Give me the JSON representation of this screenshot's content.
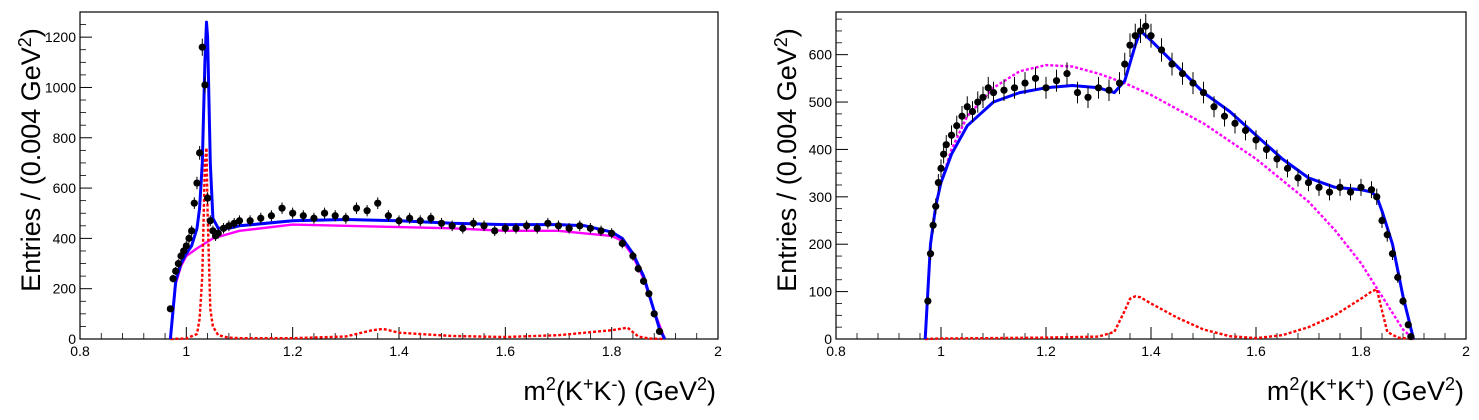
{
  "colors": {
    "data": "#000000",
    "fit_total": "#0000ff",
    "component_red": "#ff0000",
    "component_magenta": "#ff00ff",
    "frame": "#000000"
  },
  "chart_data": [
    {
      "type": "line",
      "panel": "left",
      "xlabel": {
        "base": "m",
        "sup1": "2",
        "mid": "(K",
        "sup2": "+",
        "mid2": "K",
        "sup3": "-",
        "end": ") (GeV",
        "sup4": "2",
        "close": ")"
      },
      "ylabel": {
        "base": "Entries / (0.004 GeV",
        "sup": "2",
        "close": ")"
      },
      "xlim": [
        0.8,
        2.0
      ],
      "ylim": [
        0,
        1300
      ],
      "xticks": [
        0.8,
        1.0,
        1.2,
        1.4,
        1.6,
        1.8,
        2.0
      ],
      "xtick_labels": [
        "0.8",
        "1",
        "1.2",
        "1.4",
        "1.6",
        "1.8",
        "2"
      ],
      "yticks": [
        0,
        200,
        400,
        600,
        800,
        1000,
        1200
      ],
      "ytick_labels": [
        "0",
        "200",
        "400",
        "600",
        "800",
        "1000",
        "1200"
      ],
      "series": [
        {
          "name": "data",
          "style": "points",
          "x": [
            0.97,
            0.975,
            0.98,
            0.985,
            0.99,
            0.995,
            1.0,
            1.005,
            1.01,
            1.015,
            1.02,
            1.025,
            1.03,
            1.035,
            1.04,
            1.045,
            1.05,
            1.055,
            1.06,
            1.07,
            1.08,
            1.09,
            1.1,
            1.12,
            1.14,
            1.16,
            1.18,
            1.2,
            1.22,
            1.24,
            1.26,
            1.28,
            1.3,
            1.32,
            1.34,
            1.36,
            1.38,
            1.4,
            1.42,
            1.44,
            1.46,
            1.48,
            1.5,
            1.52,
            1.54,
            1.56,
            1.58,
            1.6,
            1.62,
            1.64,
            1.66,
            1.68,
            1.7,
            1.72,
            1.74,
            1.76,
            1.78,
            1.8,
            1.82,
            1.84,
            1.85,
            1.86,
            1.87,
            1.88,
            1.89
          ],
          "y": [
            120,
            240,
            270,
            300,
            330,
            350,
            370,
            400,
            430,
            540,
            620,
            740,
            1160,
            1010,
            560,
            470,
            430,
            410,
            420,
            440,
            450,
            460,
            470,
            470,
            480,
            490,
            520,
            500,
            490,
            480,
            500,
            490,
            480,
            520,
            510,
            540,
            490,
            470,
            480,
            470,
            480,
            460,
            450,
            440,
            460,
            450,
            430,
            440,
            440,
            450,
            440,
            460,
            450,
            440,
            450,
            440,
            430,
            420,
            380,
            330,
            280,
            230,
            180,
            100,
            30
          ]
        },
        {
          "name": "total fit",
          "style": "line",
          "x": [
            0.97,
            0.98,
            0.99,
            1.0,
            1.01,
            1.02,
            1.025,
            1.03,
            1.035,
            1.038,
            1.04,
            1.045,
            1.05,
            1.06,
            1.08,
            1.1,
            1.2,
            1.3,
            1.4,
            1.5,
            1.6,
            1.7,
            1.75,
            1.8,
            1.82,
            1.84,
            1.86,
            1.88,
            1.89,
            1.9
          ],
          "y": [
            0,
            230,
            300,
            340,
            370,
            440,
            520,
            700,
            1100,
            1260,
            1200,
            700,
            480,
            440,
            440,
            450,
            470,
            475,
            470,
            460,
            455,
            455,
            450,
            425,
            400,
            340,
            250,
            110,
            40,
            0
          ]
        },
        {
          "name": "red component",
          "style": "dashed",
          "x": [
            0.97,
            1.0,
            1.02,
            1.025,
            1.03,
            1.035,
            1.038,
            1.04,
            1.045,
            1.05,
            1.06,
            1.08,
            1.1,
            1.2,
            1.3,
            1.35,
            1.37,
            1.4,
            1.5,
            1.6,
            1.7,
            1.8,
            1.83,
            1.85,
            1.87,
            1.9
          ],
          "y": [
            0,
            2,
            20,
            80,
            250,
            700,
            760,
            500,
            120,
            50,
            15,
            5,
            3,
            3,
            10,
            35,
            40,
            25,
            12,
            8,
            15,
            35,
            45,
            10,
            2,
            0
          ]
        },
        {
          "name": "magenta component",
          "style": "line",
          "x": [
            0.97,
            0.98,
            0.99,
            1.0,
            1.02,
            1.05,
            1.1,
            1.2,
            1.3,
            1.4,
            1.5,
            1.6,
            1.7,
            1.75,
            1.8,
            1.82,
            1.84,
            1.86,
            1.88,
            1.9
          ],
          "y": [
            0,
            220,
            290,
            330,
            360,
            400,
            430,
            455,
            450,
            445,
            440,
            430,
            430,
            420,
            410,
            390,
            330,
            240,
            110,
            0
          ]
        }
      ]
    },
    {
      "type": "line",
      "panel": "right",
      "xlabel": {
        "base": "m",
        "sup1": "2",
        "mid": "(K",
        "sup2": "+",
        "mid2": "K",
        "sup3": "+",
        "end": ") (GeV",
        "sup4": "2",
        "close": ")"
      },
      "ylabel": {
        "base": "Entries / (0.004 GeV",
        "sup": "2",
        "close": ")"
      },
      "xlim": [
        0.8,
        2.0
      ],
      "ylim": [
        0,
        690
      ],
      "xticks": [
        0.8,
        1.0,
        1.2,
        1.4,
        1.6,
        1.8,
        2.0
      ],
      "xtick_labels": [
        "0.8",
        "1",
        "1.2",
        "1.4",
        "1.6",
        "1.8",
        "2"
      ],
      "yticks": [
        0,
        100,
        200,
        300,
        400,
        500,
        600
      ],
      "ytick_labels": [
        "0",
        "100",
        "200",
        "300",
        "400",
        "500",
        "600"
      ],
      "series": [
        {
          "name": "data",
          "style": "points",
          "x": [
            0.975,
            0.98,
            0.985,
            0.99,
            0.995,
            1.0,
            1.005,
            1.01,
            1.02,
            1.03,
            1.04,
            1.05,
            1.06,
            1.07,
            1.08,
            1.09,
            1.1,
            1.12,
            1.14,
            1.16,
            1.18,
            1.2,
            1.22,
            1.24,
            1.26,
            1.28,
            1.3,
            1.32,
            1.34,
            1.35,
            1.36,
            1.37,
            1.38,
            1.39,
            1.4,
            1.42,
            1.44,
            1.46,
            1.48,
            1.5,
            1.52,
            1.54,
            1.56,
            1.58,
            1.6,
            1.62,
            1.64,
            1.66,
            1.68,
            1.7,
            1.72,
            1.74,
            1.76,
            1.78,
            1.8,
            1.82,
            1.83,
            1.84,
            1.85,
            1.86,
            1.87,
            1.88,
            1.89,
            1.895
          ],
          "y": [
            80,
            180,
            240,
            280,
            330,
            360,
            390,
            410,
            430,
            450,
            470,
            490,
            480,
            500,
            510,
            530,
            520,
            525,
            530,
            540,
            550,
            530,
            545,
            560,
            520,
            510,
            530,
            525,
            540,
            580,
            620,
            640,
            650,
            660,
            640,
            610,
            580,
            560,
            540,
            520,
            490,
            470,
            455,
            440,
            420,
            400,
            380,
            360,
            340,
            330,
            320,
            310,
            320,
            310,
            320,
            315,
            300,
            250,
            220,
            180,
            130,
            80,
            30,
            5
          ]
        },
        {
          "name": "total fit",
          "style": "line",
          "x": [
            0.97,
            0.98,
            0.99,
            1.0,
            1.02,
            1.05,
            1.1,
            1.15,
            1.2,
            1.25,
            1.3,
            1.33,
            1.35,
            1.37,
            1.38,
            1.4,
            1.45,
            1.5,
            1.55,
            1.6,
            1.65,
            1.7,
            1.75,
            1.8,
            1.82,
            1.83,
            1.84,
            1.86,
            1.88,
            1.9
          ],
          "y": [
            0,
            200,
            280,
            330,
            390,
            450,
            500,
            520,
            530,
            535,
            530,
            520,
            545,
            620,
            650,
            630,
            575,
            520,
            480,
            430,
            380,
            340,
            320,
            315,
            310,
            300,
            270,
            200,
            90,
            0
          ]
        },
        {
          "name": "red component",
          "style": "dashed",
          "x": [
            0.97,
            1.0,
            1.1,
            1.2,
            1.3,
            1.33,
            1.35,
            1.36,
            1.37,
            1.38,
            1.4,
            1.45,
            1.5,
            1.55,
            1.6,
            1.65,
            1.7,
            1.75,
            1.8,
            1.82,
            1.83,
            1.84,
            1.85,
            1.87,
            1.9
          ],
          "y": [
            0,
            1,
            2,
            3,
            5,
            15,
            60,
            85,
            90,
            88,
            75,
            45,
            20,
            6,
            2,
            8,
            25,
            50,
            85,
            100,
            105,
            60,
            15,
            3,
            0
          ]
        },
        {
          "name": "magenta component",
          "style": "dashed",
          "x": [
            0.97,
            0.98,
            0.99,
            1.0,
            1.02,
            1.05,
            1.1,
            1.15,
            1.2,
            1.25,
            1.3,
            1.35,
            1.4,
            1.5,
            1.6,
            1.7,
            1.75,
            1.8,
            1.82,
            1.84,
            1.86,
            1.88,
            1.9
          ],
          "y": [
            0,
            200,
            280,
            330,
            400,
            470,
            530,
            565,
            578,
            575,
            560,
            540,
            515,
            455,
            380,
            290,
            230,
            160,
            125,
            90,
            55,
            20,
            0
          ]
        }
      ]
    }
  ]
}
